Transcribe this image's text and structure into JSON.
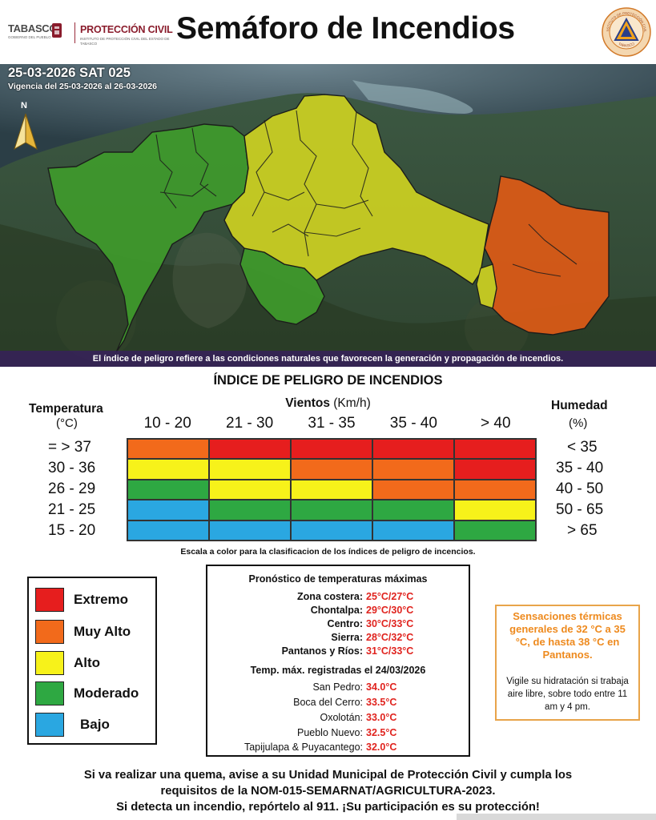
{
  "header": {
    "logo_tabasco": "TABASCO",
    "logo_tabasco_sub": "GOBIERNO DEL PUEBLO",
    "logo_pc": "PROTECCIÓN CIVIL",
    "logo_pc_sub": "INSTITUTO DE PROTECCIÓN CIVIL DEL ESTADO DE TABASCO",
    "title": "Semáforo de Incendios",
    "seal_text_top": "INSTITUTO DE PROTECCIÓN CIVIL",
    "seal_text_bottom": "TABASCO"
  },
  "map": {
    "date_line": "25-03-2026 SAT 025",
    "vigencia": "Vigencia del 25-03-2026 al 26-03-2026",
    "north_label": "N",
    "note": "El índice de peligro refiere a las condiciones naturales que favorecen la generación y propagación de incendios.",
    "zones": [
      {
        "level": "moderado",
        "color": "#3f9a2c"
      },
      {
        "level": "alto",
        "color": "#ccd022"
      },
      {
        "level": "muy_alto",
        "color": "#dc5a16"
      }
    ]
  },
  "index": {
    "title": "ÍNDICE DE PELIGRO DE INCENDIOS",
    "vientos_label": "Vientos",
    "vientos_unit": "(Km/h)",
    "temp_label": "Temperatura",
    "temp_unit": "(°C)",
    "hum_label": "Humedad",
    "hum_unit": "(%)",
    "wind_ranges": [
      "10 - 20",
      "21 - 30",
      "31 - 35",
      "35 - 40",
      "> 40"
    ],
    "temp_ranges": [
      "= > 37",
      "30 - 36",
      "26 - 29",
      "21 - 25",
      "15 - 20"
    ],
    "hum_ranges": [
      "< 35",
      "35 - 40",
      "40 - 50",
      "50 - 65",
      "> 65"
    ],
    "colors": {
      "extremo": "#e61e1e",
      "muy_alto": "#f26a1b",
      "alto": "#f7f21a",
      "moderado": "#2ea842",
      "bajo": "#2aa7e1"
    },
    "matrix": [
      [
        "muy_alto",
        "extremo",
        "extremo",
        "extremo",
        "extremo"
      ],
      [
        "alto",
        "alto",
        "muy_alto",
        "muy_alto",
        "extremo"
      ],
      [
        "moderado",
        "alto",
        "alto",
        "muy_alto",
        "muy_alto"
      ],
      [
        "bajo",
        "moderado",
        "moderado",
        "moderado",
        "alto"
      ],
      [
        "bajo",
        "bajo",
        "bajo",
        "bajo",
        "moderado"
      ]
    ],
    "scale_note": "Escala a color para la clasificacion de los índices de peligro de incencios."
  },
  "legend": [
    {
      "label": "Extremo",
      "color": "#e61e1e"
    },
    {
      "label": "Muy Alto",
      "color": "#f26a1b"
    },
    {
      "label": "Alto",
      "color": "#f7f21a"
    },
    {
      "label": "Moderado",
      "color": "#2ea842"
    },
    {
      "label": "Bajo",
      "color": "#2aa7e1"
    }
  ],
  "forecast": {
    "title": "Pronóstico de temperaturas máximas",
    "items": [
      {
        "name": "Zona costera:",
        "value": "25°C/27°C"
      },
      {
        "name": "Chontalpa:",
        "value": "29°C/30°C"
      },
      {
        "name": "Centro:",
        "value": "30°C/33°C"
      },
      {
        "name": "Sierra:",
        "value": "28°C/32°C"
      },
      {
        "name": "Pantanos y Ríos:",
        "value": "31°C/33°C"
      }
    ],
    "recorded_title": "Temp. máx. registradas el 24/03/2026",
    "recorded": [
      {
        "name": "San Pedro:",
        "value": "34.0°C"
      },
      {
        "name": "Boca del Cerro:",
        "value": "33.5°C"
      },
      {
        "name": "Oxolotán:",
        "value": "33.0°C"
      },
      {
        "name": "Pueblo Nuevo:",
        "value": "32.5°C"
      },
      {
        "name": "Tapijulapa & Puyacantego:",
        "value": "32.0°C"
      }
    ]
  },
  "sensaciones": {
    "hot_text": "Sensaciones térmicas generales de 32 °C a 35 °C, de hasta 38 °C en Pantanos.",
    "tip_text": "Vigile su hidratación si trabaja aire libre, sobre todo entre 11 am y 4 pm."
  },
  "footer": {
    "line1": "Si va realizar una quema, avise a su Unidad Municipal de Protección Civil y cumpla los",
    "line2": "requisitos de la NOM-015-SEMARNAT/AGRICULTURA-2023.",
    "line3": "Si detecta un incendio, repórtelo al 911. ¡Su participación es su protección!"
  }
}
